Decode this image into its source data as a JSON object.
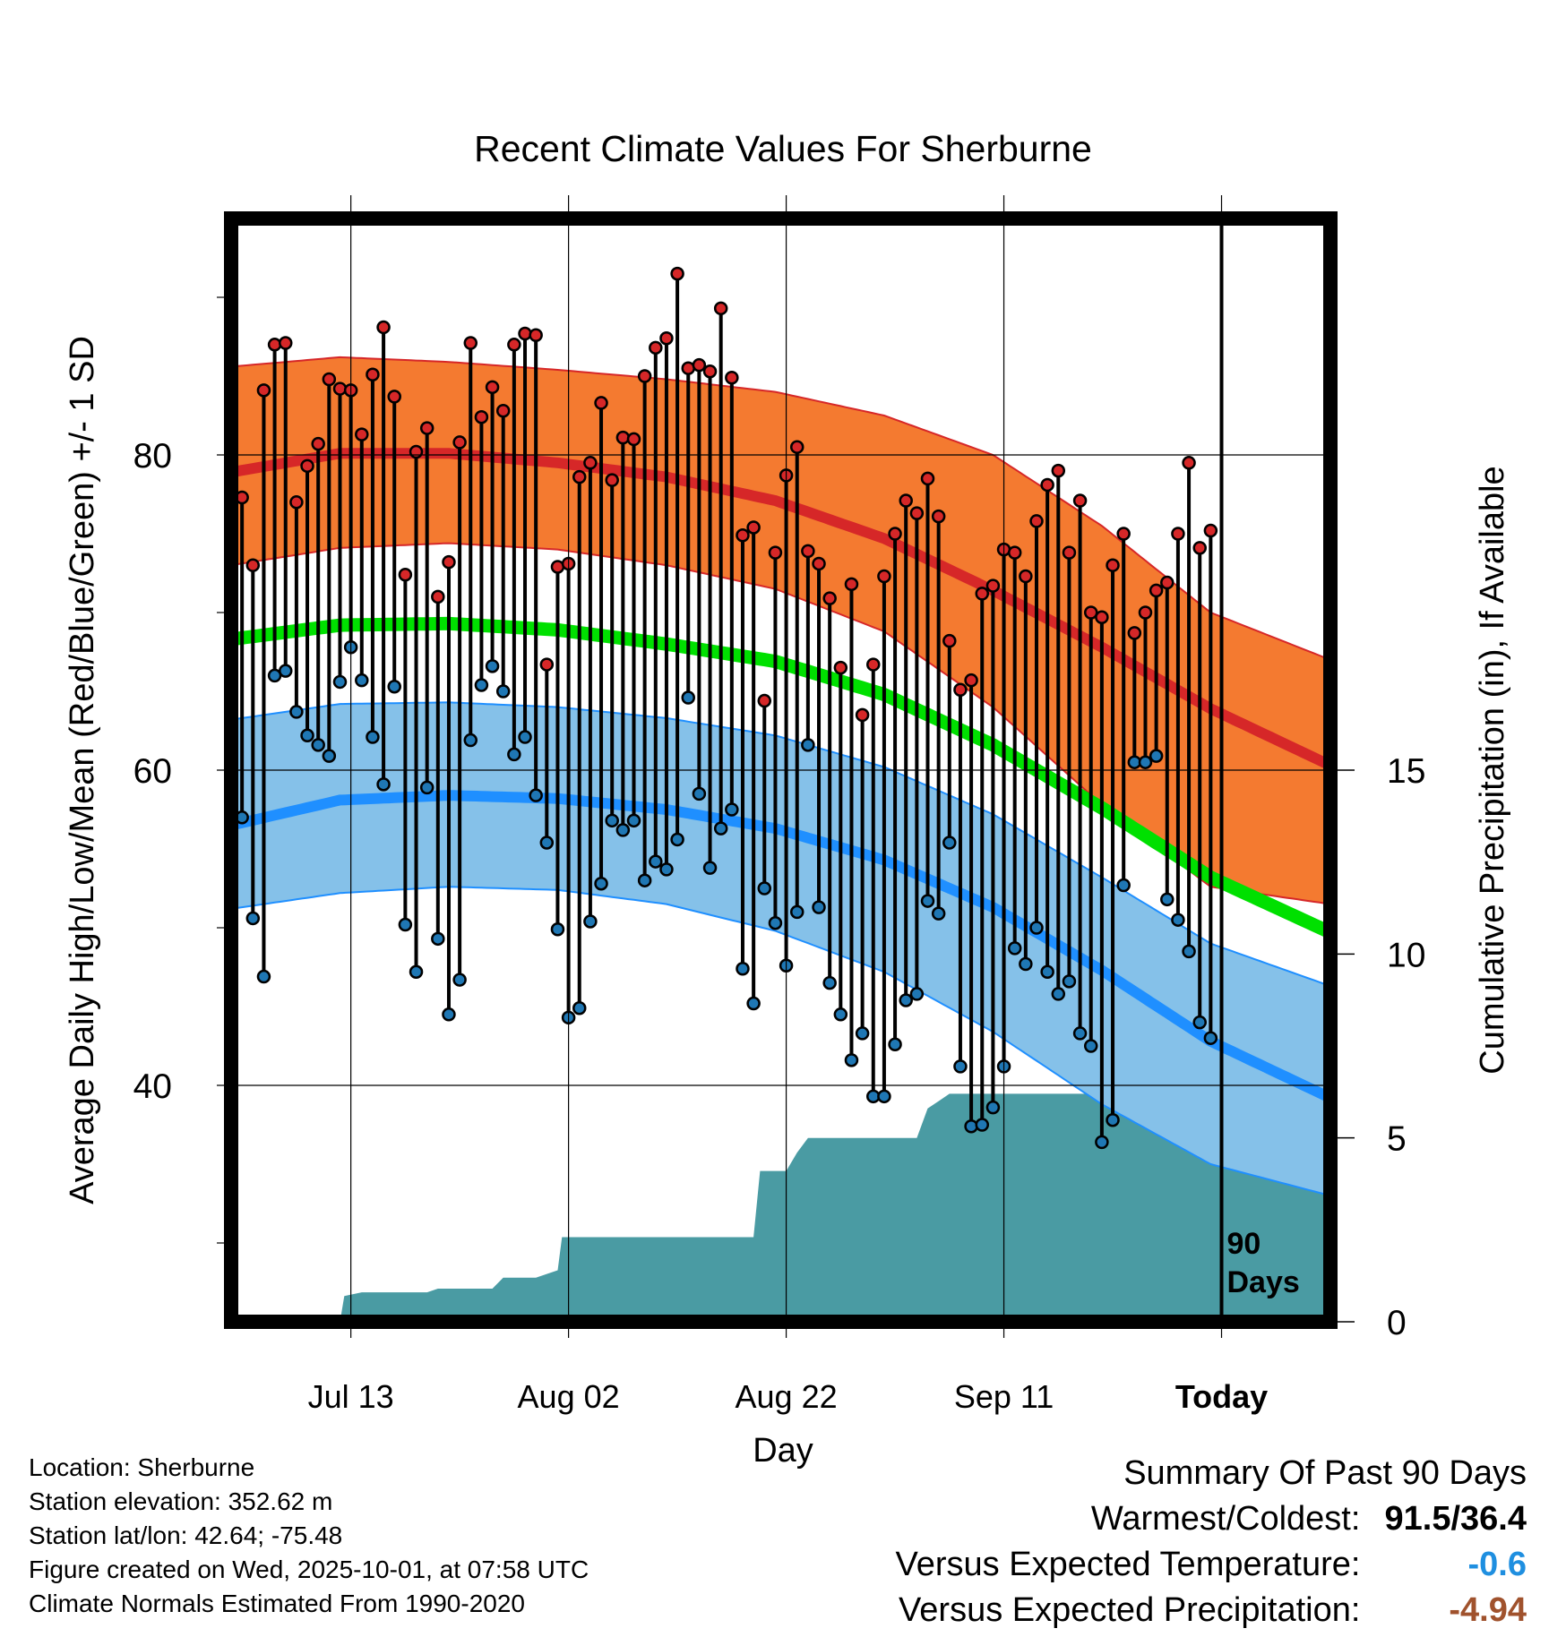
{
  "chart_data": {
    "type": "line",
    "title": "Recent Climate Values For Sherburne",
    "xlabel": "Day",
    "ylabel": "Average Daily High/Low/Mean (Red/Blue/Green) +/- 1 SD",
    "y2label": "Cumulative Precipitation (in), If Available",
    "ylim": [
      25,
      95
    ],
    "y2lim": [
      0,
      30
    ],
    "x_range_days": [
      0,
      101
    ],
    "y_ticks": [
      40,
      60,
      80
    ],
    "y2_ticks": [
      0,
      5,
      10,
      15
    ],
    "x_ticks": [
      {
        "day": 11,
        "label": "Jul 13"
      },
      {
        "day": 31,
        "label": "Aug 02"
      },
      {
        "day": 51,
        "label": "Aug 22"
      },
      {
        "day": 71,
        "label": "Sep 11"
      },
      {
        "day": 91,
        "label": "Today"
      }
    ],
    "today_marker": {
      "day": 91,
      "label_line1": "90",
      "label_line2": "Days"
    },
    "normals": {
      "days": [
        0,
        10,
        20,
        30,
        40,
        50,
        60,
        70,
        80,
        90,
        101
      ],
      "high_mean": [
        78.9,
        80.1,
        80.1,
        79.5,
        78.6,
        77.1,
        74.7,
        71.4,
        67.8,
        63.9,
        60.3
      ],
      "high_upper": [
        85.6,
        86.2,
        85.9,
        85.4,
        84.8,
        84.0,
        82.5,
        80.0,
        75.5,
        70.0,
        67.0
      ],
      "high_lower": [
        73.0,
        74.1,
        74.4,
        74.0,
        73.0,
        71.5,
        68.8,
        64.0,
        57.8,
        52.6,
        51.5
      ],
      "mean": [
        68.3,
        69.2,
        69.3,
        68.9,
        68.0,
        66.9,
        64.8,
        61.6,
        57.6,
        53.2,
        49.7
      ],
      "low_mean": [
        56.5,
        58.1,
        58.4,
        58.2,
        57.5,
        56.3,
        54.3,
        51.3,
        47.3,
        42.8,
        39.2
      ],
      "low_upper": [
        63.2,
        64.2,
        64.3,
        64.0,
        63.3,
        62.2,
        60.2,
        57.2,
        53.2,
        49.0,
        46.3
      ],
      "low_lower": [
        51.2,
        52.2,
        52.6,
        52.4,
        51.5,
        49.8,
        47.2,
        43.4,
        38.8,
        35.0,
        33.0
      ]
    },
    "series": [
      {
        "name": "Daily High",
        "color": "#d62728",
        "values": [
          77.3,
          73.0,
          84.1,
          87.0,
          87.1,
          77.0,
          79.3,
          80.7,
          84.8,
          84.2,
          84.1,
          81.3,
          85.1,
          88.1,
          83.7,
          72.4,
          80.2,
          81.7,
          71.0,
          73.2,
          80.8,
          87.1,
          82.4,
          84.3,
          82.8,
          87.0,
          87.7,
          87.6,
          66.7,
          72.9,
          73.1,
          78.6,
          79.5,
          83.3,
          78.4,
          81.1,
          81.0,
          85.0,
          86.8,
          87.4,
          91.5,
          85.5,
          85.7,
          85.3,
          89.3,
          84.9,
          74.9,
          75.4,
          64.4,
          73.8,
          78.7,
          80.5,
          73.9,
          73.1,
          70.9,
          66.5,
          71.8,
          63.5,
          66.7,
          72.3,
          75.0,
          77.1,
          76.3,
          78.5,
          76.1,
          68.2,
          65.1,
          65.7,
          71.2,
          71.7,
          74.0,
          73.8,
          72.3,
          75.8,
          78.1,
          79.0,
          73.8,
          77.1,
          70.0,
          69.7,
          73.0,
          75.0,
          68.7,
          70.0,
          71.4,
          71.9,
          75.0,
          79.5,
          74.1,
          75.2
        ]
      },
      {
        "name": "Daily Low",
        "color": "#1f77b4",
        "values": [
          57.0,
          50.6,
          46.9,
          66.0,
          66.3,
          63.7,
          62.2,
          61.6,
          60.9,
          65.6,
          67.8,
          65.7,
          62.1,
          59.1,
          65.3,
          50.2,
          47.2,
          58.9,
          49.3,
          44.5,
          46.7,
          61.9,
          65.4,
          66.6,
          65.0,
          61.0,
          62.1,
          58.4,
          55.4,
          49.9,
          44.3,
          44.9,
          50.4,
          52.8,
          56.8,
          56.2,
          56.8,
          53.0,
          54.2,
          53.7,
          55.6,
          64.6,
          58.5,
          53.8,
          56.3,
          57.5,
          47.4,
          45.2,
          52.5,
          50.3,
          47.6,
          51.0,
          61.6,
          51.3,
          46.5,
          44.5,
          41.6,
          43.3,
          39.3,
          39.3,
          42.6,
          45.4,
          45.8,
          51.7,
          50.9,
          55.4,
          41.2,
          37.4,
          37.5,
          38.6,
          41.2,
          48.7,
          47.7,
          50.0,
          47.2,
          45.8,
          46.6,
          43.3,
          42.5,
          36.4,
          37.8,
          52.7,
          60.5,
          60.5,
          60.9,
          51.8,
          50.5,
          48.5,
          44.0,
          43.0
        ]
      },
      {
        "name": "Cumulative Precipitation",
        "days": [
          0,
          10,
          10.4,
          12,
          18,
          19,
          24,
          25,
          28,
          30,
          30.4,
          48,
          48.6,
          51,
          52,
          53,
          56,
          60,
          63,
          64,
          65,
          66,
          82,
          84,
          85,
          87,
          101
        ],
        "values": [
          0,
          0,
          0.7,
          0.8,
          0.8,
          0.9,
          0.9,
          1.2,
          1.2,
          1.4,
          2.3,
          2.3,
          4.1,
          4.1,
          4.6,
          5.0,
          5.0,
          5.0,
          5.0,
          5.8,
          6.0,
          6.2,
          6.2,
          6.5,
          7.4,
          7.4,
          7.4
        ]
      }
    ]
  },
  "location": {
    "label": "Location: Sherburne",
    "elevation": "Station elevation: 352.62 m",
    "latlon": "Station lat/lon: 42.64; -75.48",
    "created": "Figure created on Wed, 2025-10-01, at 07:58 UTC",
    "normals_source": "Climate Normals Estimated From 1990-2020"
  },
  "summary": {
    "title": "Summary Of Past 90 Days",
    "warm_cold_label": "Warmest/Coldest:",
    "warm_cold_value": "91.5/36.4",
    "temp_label": "Versus Expected Temperature:",
    "temp_value": "-0.6",
    "temp_color": "#1f8fe0",
    "precip_label": "Versus Expected Precipitation:",
    "precip_value": "-4.94",
    "precip_color": "#a0522d"
  }
}
